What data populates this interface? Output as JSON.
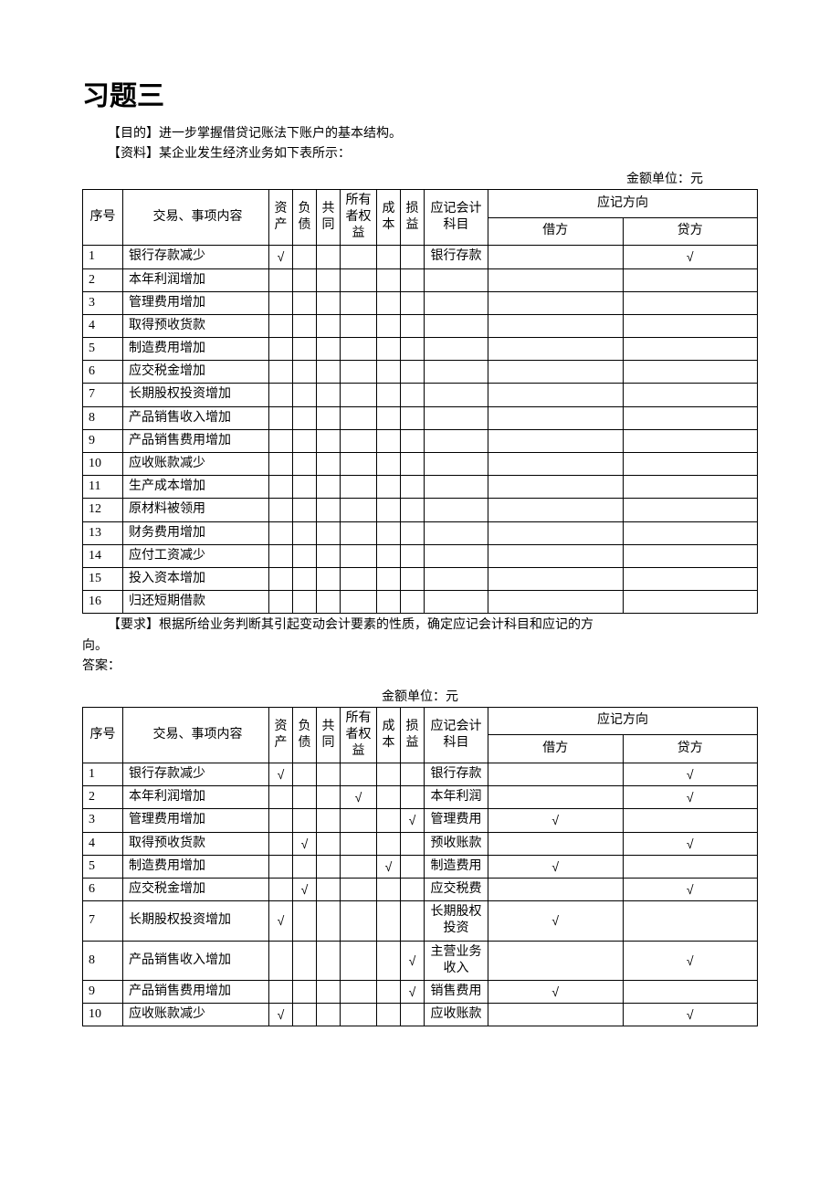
{
  "title": "习题三",
  "purpose_label": "【目的】",
  "purpose_text": "进一步掌握借贷记账法下账户的基本结构。",
  "material_label": "【资料】",
  "material_text": "某企业发生经济业务如下表所示：",
  "unit_label": "金额单位：元",
  "headers": {
    "seq": "序号",
    "content": "交易、事项内容",
    "asset": "资产",
    "liability": "负债",
    "joint": "共同",
    "owner_equity": "所有者权益",
    "cost": "成本",
    "profit_loss": "损益",
    "subject": "应记会计科目",
    "direction": "应记方向",
    "debit": "借方",
    "credit": "贷方"
  },
  "table1_rows": [
    {
      "seq": "1",
      "content": "银行存款减少",
      "asset": "√",
      "liability": "",
      "joint": "",
      "owner": "",
      "cost": "",
      "pl": "",
      "subject": "银行存款",
      "debit": "",
      "credit": "√"
    },
    {
      "seq": "2",
      "content": "本年利润增加",
      "asset": "",
      "liability": "",
      "joint": "",
      "owner": "",
      "cost": "",
      "pl": "",
      "subject": "",
      "debit": "",
      "credit": ""
    },
    {
      "seq": "3",
      "content": "管理费用增加",
      "asset": "",
      "liability": "",
      "joint": "",
      "owner": "",
      "cost": "",
      "pl": "",
      "subject": "",
      "debit": "",
      "credit": ""
    },
    {
      "seq": "4",
      "content": "取得预收货款",
      "asset": "",
      "liability": "",
      "joint": "",
      "owner": "",
      "cost": "",
      "pl": "",
      "subject": "",
      "debit": "",
      "credit": ""
    },
    {
      "seq": "5",
      "content": "制造费用增加",
      "asset": "",
      "liability": "",
      "joint": "",
      "owner": "",
      "cost": "",
      "pl": "",
      "subject": "",
      "debit": "",
      "credit": ""
    },
    {
      "seq": "6",
      "content": "应交税金增加",
      "asset": "",
      "liability": "",
      "joint": "",
      "owner": "",
      "cost": "",
      "pl": "",
      "subject": "",
      "debit": "",
      "credit": ""
    },
    {
      "seq": "7",
      "content": "长期股权投资增加",
      "asset": "",
      "liability": "",
      "joint": "",
      "owner": "",
      "cost": "",
      "pl": "",
      "subject": "",
      "debit": "",
      "credit": ""
    },
    {
      "seq": "8",
      "content": "产品销售收入增加",
      "asset": "",
      "liability": "",
      "joint": "",
      "owner": "",
      "cost": "",
      "pl": "",
      "subject": "",
      "debit": "",
      "credit": ""
    },
    {
      "seq": "9",
      "content": "产品销售费用增加",
      "asset": "",
      "liability": "",
      "joint": "",
      "owner": "",
      "cost": "",
      "pl": "",
      "subject": "",
      "debit": "",
      "credit": ""
    },
    {
      "seq": "10",
      "content": "应收账款减少",
      "asset": "",
      "liability": "",
      "joint": "",
      "owner": "",
      "cost": "",
      "pl": "",
      "subject": "",
      "debit": "",
      "credit": ""
    },
    {
      "seq": "11",
      "content": "生产成本增加",
      "asset": "",
      "liability": "",
      "joint": "",
      "owner": "",
      "cost": "",
      "pl": "",
      "subject": "",
      "debit": "",
      "credit": ""
    },
    {
      "seq": "12",
      "content": "原材料被领用",
      "asset": "",
      "liability": "",
      "joint": "",
      "owner": "",
      "cost": "",
      "pl": "",
      "subject": "",
      "debit": "",
      "credit": ""
    },
    {
      "seq": "13",
      "content": "财务费用增加",
      "asset": "",
      "liability": "",
      "joint": "",
      "owner": "",
      "cost": "",
      "pl": "",
      "subject": "",
      "debit": "",
      "credit": ""
    },
    {
      "seq": "14",
      "content": "应付工资减少",
      "asset": "",
      "liability": "",
      "joint": "",
      "owner": "",
      "cost": "",
      "pl": "",
      "subject": "",
      "debit": "",
      "credit": ""
    },
    {
      "seq": "15",
      "content": "投入资本增加",
      "asset": "",
      "liability": "",
      "joint": "",
      "owner": "",
      "cost": "",
      "pl": "",
      "subject": "",
      "debit": "",
      "credit": ""
    },
    {
      "seq": "16",
      "content": "归还短期借款",
      "asset": "",
      "liability": "",
      "joint": "",
      "owner": "",
      "cost": "",
      "pl": "",
      "subject": "",
      "debit": "",
      "credit": ""
    }
  ],
  "requirement_label": "【要求】",
  "requirement_text": "根据所给业务判断其引起变动会计要素的性质，确定应记会计科目和应记的方",
  "requirement_text2": "向。",
  "answer_label": "答案：",
  "table2_rows": [
    {
      "seq": "1",
      "content": "银行存款减少",
      "asset": "√",
      "liability": "",
      "joint": "",
      "owner": "",
      "cost": "",
      "pl": "",
      "subject": "银行存款",
      "debit": "",
      "credit": "√"
    },
    {
      "seq": "2",
      "content": "本年利润增加",
      "asset": "",
      "liability": "",
      "joint": "",
      "owner": "√",
      "cost": "",
      "pl": "",
      "subject": "本年利润",
      "debit": "",
      "credit": "√"
    },
    {
      "seq": "3",
      "content": "管理费用增加",
      "asset": "",
      "liability": "",
      "joint": "",
      "owner": "",
      "cost": "",
      "pl": "√",
      "subject": "管理费用",
      "debit": "√",
      "credit": ""
    },
    {
      "seq": "4",
      "content": "取得预收货款",
      "asset": "",
      "liability": "√",
      "joint": "",
      "owner": "",
      "cost": "",
      "pl": "",
      "subject": "预收账款",
      "debit": "",
      "credit": "√"
    },
    {
      "seq": "5",
      "content": "制造费用增加",
      "asset": "",
      "liability": "",
      "joint": "",
      "owner": "",
      "cost": "√",
      "pl": "",
      "subject": "制造费用",
      "debit": "√",
      "credit": ""
    },
    {
      "seq": "6",
      "content": "应交税金增加",
      "asset": "",
      "liability": "√",
      "joint": "",
      "owner": "",
      "cost": "",
      "pl": "",
      "subject": "应交税费",
      "debit": "",
      "credit": "√"
    },
    {
      "seq": "7",
      "content": "长期股权投资增加",
      "asset": "√",
      "liability": "",
      "joint": "",
      "owner": "",
      "cost": "",
      "pl": "",
      "subject": "长期股权投资",
      "debit": "√",
      "credit": ""
    },
    {
      "seq": "8",
      "content": "产品销售收入增加",
      "asset": "",
      "liability": "",
      "joint": "",
      "owner": "",
      "cost": "",
      "pl": "√",
      "subject": "主营业务收入",
      "debit": "",
      "credit": "√"
    },
    {
      "seq": "9",
      "content": "产品销售费用增加",
      "asset": "",
      "liability": "",
      "joint": "",
      "owner": "",
      "cost": "",
      "pl": "√",
      "subject": "销售费用",
      "debit": "√",
      "credit": ""
    },
    {
      "seq": "10",
      "content": "应收账款减少",
      "asset": "√",
      "liability": "",
      "joint": "",
      "owner": "",
      "cost": "",
      "pl": "",
      "subject": "应收账款",
      "debit": "",
      "credit": "√"
    }
  ]
}
